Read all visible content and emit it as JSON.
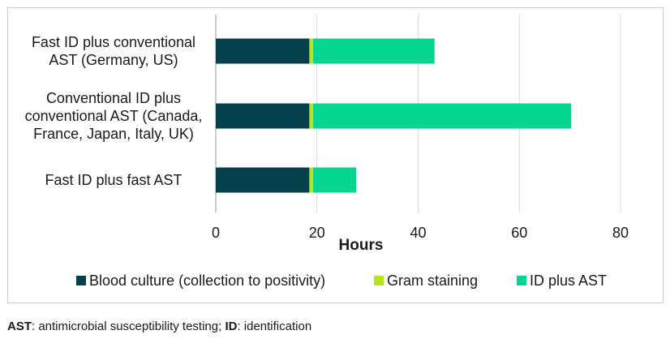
{
  "chart_data": {
    "type": "bar",
    "orientation": "horizontal",
    "stacked": true,
    "categories": [
      [
        "Fast ID plus conventional",
        "AST (Germany, US)"
      ],
      [
        "Conventional ID plus",
        "conventional AST (Canada,",
        "France, Japan, Italy, UK)"
      ],
      [
        "Fast ID plus fast AST"
      ]
    ],
    "series": [
      {
        "name": "Blood culture (collection to positivity)",
        "color": "#05414d",
        "values": [
          18.5,
          18.5,
          18.5
        ]
      },
      {
        "name": "Gram staining",
        "color": "#b5e61d",
        "values": [
          0.75,
          0.75,
          0.75
        ]
      },
      {
        "name": "ID plus AST",
        "color": "#05d68f",
        "values": [
          24,
          51,
          8.5
        ]
      }
    ],
    "xlabel": "Hours",
    "xlim": [
      0,
      80
    ],
    "xticks": [
      "0",
      "20",
      "40",
      "60",
      "80"
    ],
    "grid": "vertical",
    "legend_position": "bottom"
  },
  "footnote": {
    "abbr1": "AST",
    "text1": ": antimicrobial susceptibility testing; ",
    "abbr2": "ID",
    "text2": ": identification"
  }
}
